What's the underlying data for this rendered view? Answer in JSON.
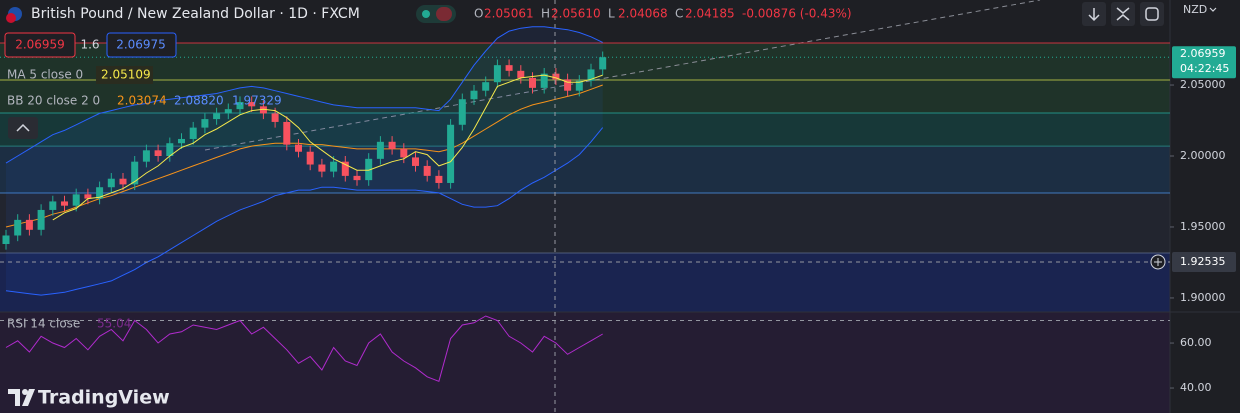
{
  "header": {
    "title": "British Pound / New Zealand Dollar · 1D · FXCM",
    "ohlc": [
      {
        "label": "O",
        "value": "2.05061"
      },
      {
        "label": "H",
        "value": "2.05610"
      },
      {
        "label": "L",
        "value": "2.04068"
      },
      {
        "label": "C",
        "value": "2.04185"
      }
    ],
    "change": "-0.00876 (-0.43%)"
  },
  "order_panel": {
    "sell": "2.06959",
    "spread": "1.6",
    "buy": "2.06975"
  },
  "indicators": {
    "ma": {
      "name": "MA 5 close 0",
      "value": "2.05109"
    },
    "bb": {
      "name": "BB 20 close 2 0",
      "values": [
        "2.03074",
        "2.08820",
        "1.97329"
      ]
    },
    "rsi": {
      "name": "RSI 14 close",
      "value": "55.04"
    }
  },
  "currency": "NZD",
  "countdown": "04:22:45",
  "logo": "TradingView",
  "chart_data": {
    "type": "candlestick",
    "up_color": "#22ab94",
    "down_color": "#f7525f",
    "ylim": [
      1.8901,
      2.1099
    ],
    "yticks": [
      {
        "value": 2.05,
        "label": "2.05000"
      },
      {
        "value": 2.0,
        "label": "2.00000"
      },
      {
        "value": 1.95,
        "label": "1.95000"
      },
      {
        "value": 1.9,
        "label": "1.90000"
      }
    ],
    "crosshair_price": 1.92535,
    "open": [
      1.938,
      1.944,
      1.955,
      1.948,
      1.962,
      1.968,
      1.965,
      1.973,
      1.97,
      1.978,
      1.984,
      1.98,
      1.996,
      2.004,
      2.0,
      2.009,
      2.012,
      2.02,
      2.026,
      2.03,
      2.033,
      2.038,
      2.035,
      2.03,
      2.024,
      2.008,
      2.003,
      1.994,
      1.989,
      1.996,
      1.986,
      1.983,
      1.998,
      2.01,
      2.005,
      1.999,
      1.993,
      1.986,
      1.981,
      2.022,
      2.04,
      2.046,
      2.052,
      2.064,
      2.06,
      2.055,
      2.048,
      2.058,
      2.054,
      2.046,
      2.053,
      2.061
    ],
    "high": [
      1.948,
      1.959,
      1.959,
      1.966,
      1.972,
      1.972,
      1.977,
      1.977,
      1.982,
      1.988,
      1.988,
      2.0,
      2.008,
      2.008,
      2.013,
      2.016,
      2.024,
      2.03,
      2.034,
      2.037,
      2.042,
      2.042,
      2.039,
      2.034,
      2.028,
      2.012,
      2.007,
      1.998,
      2.0,
      2.0,
      1.99,
      2.002,
      2.014,
      2.014,
      2.009,
      2.003,
      1.997,
      1.99,
      2.026,
      2.044,
      2.05,
      2.056,
      2.068,
      2.068,
      2.064,
      2.059,
      2.062,
      2.062,
      2.058,
      2.057,
      2.065,
      2.0736
    ],
    "low": [
      1.934,
      1.94,
      1.944,
      1.944,
      1.958,
      1.961,
      1.961,
      1.966,
      1.966,
      1.974,
      1.976,
      1.976,
      1.992,
      1.996,
      1.996,
      2.005,
      2.008,
      2.016,
      2.022,
      2.026,
      2.029,
      2.031,
      2.026,
      2.02,
      2.004,
      1.999,
      1.99,
      1.985,
      1.985,
      1.982,
      1.979,
      1.979,
      1.994,
      2.001,
      1.995,
      1.989,
      1.982,
      1.977,
      1.977,
      2.018,
      2.036,
      2.042,
      2.048,
      2.056,
      2.051,
      2.044,
      2.044,
      2.05,
      2.042,
      2.042,
      2.049,
      2.057
    ],
    "close": [
      1.944,
      1.955,
      1.948,
      1.962,
      1.968,
      1.965,
      1.973,
      1.97,
      1.978,
      1.984,
      1.98,
      1.996,
      2.004,
      2.0,
      2.009,
      2.012,
      2.02,
      2.026,
      2.03,
      2.033,
      2.038,
      2.035,
      2.03,
      2.024,
      2.008,
      2.003,
      1.994,
      1.989,
      1.996,
      1.986,
      1.983,
      1.998,
      2.01,
      2.005,
      1.999,
      1.993,
      1.986,
      1.981,
      2.022,
      2.04,
      2.046,
      2.052,
      2.064,
      2.06,
      2.055,
      2.048,
      2.058,
      2.054,
      2.046,
      2.053,
      2.061,
      2.06959
    ],
    "ma": {
      "color": "#f5e94b",
      "values": [
        null,
        null,
        null,
        null,
        1.955,
        1.96,
        1.963,
        1.97,
        1.971,
        1.974,
        1.977,
        1.982,
        1.988,
        1.993,
        2.0,
        2.006,
        2.009,
        2.015,
        2.019,
        2.024,
        2.029,
        2.032,
        2.033,
        2.032,
        2.027,
        2.02,
        2.01,
        2.004,
        1.998,
        1.994,
        1.99,
        1.99,
        1.993,
        1.996,
        1.998,
        2.003,
        2.001,
        1.993,
        1.996,
        2.006,
        2.019,
        2.034,
        2.049,
        2.052,
        2.055,
        2.056,
        2.057,
        2.055,
        2.052,
        2.052,
        2.054,
        2.057
      ]
    },
    "bb": {
      "basis_color": "#f7931a",
      "band_color": "#2962ff",
      "fill": "#2962ff",
      "basis": [
        1.95,
        1.952,
        1.954,
        1.956,
        1.959,
        1.961,
        1.964,
        1.967,
        1.97,
        1.972,
        1.975,
        1.978,
        1.981,
        1.984,
        1.987,
        1.99,
        1.993,
        1.996,
        1.999,
        2.002,
        2.005,
        2.007,
        2.008,
        2.009,
        2.009,
        2.009,
        2.008,
        2.008,
        2.007,
        2.006,
        2.005,
        2.005,
        2.005,
        2.005,
        2.005,
        2.005,
        2.004,
        2.003,
        2.005,
        2.009,
        2.014,
        2.019,
        2.024,
        2.029,
        2.033,
        2.036,
        2.038,
        2.04,
        2.042,
        2.044,
        2.047,
        2.05
      ],
      "upper": [
        1.995,
        2.0,
        2.005,
        2.01,
        2.015,
        2.018,
        2.022,
        2.026,
        2.03,
        2.032,
        2.034,
        2.036,
        2.037,
        2.039,
        2.04,
        2.041,
        2.042,
        2.043,
        2.044,
        2.046,
        2.048,
        2.049,
        2.048,
        2.046,
        2.044,
        2.042,
        2.04,
        2.038,
        2.036,
        2.035,
        2.034,
        2.034,
        2.034,
        2.034,
        2.034,
        2.034,
        2.033,
        2.032,
        2.04,
        2.052,
        2.064,
        2.074,
        2.083,
        2.088,
        2.09,
        2.091,
        2.091,
        2.09,
        2.089,
        2.087,
        2.084,
        2.08
      ],
      "lower": [
        1.905,
        1.904,
        1.903,
        1.902,
        1.903,
        1.904,
        1.906,
        1.908,
        1.91,
        1.912,
        1.916,
        1.92,
        1.925,
        1.929,
        1.934,
        1.939,
        1.944,
        1.949,
        1.954,
        1.958,
        1.962,
        1.965,
        1.968,
        1.972,
        1.974,
        1.976,
        1.976,
        1.978,
        1.978,
        1.977,
        1.976,
        1.976,
        1.976,
        1.976,
        1.976,
        1.976,
        1.975,
        1.974,
        1.97,
        1.966,
        1.964,
        1.964,
        1.965,
        1.97,
        1.976,
        1.981,
        1.985,
        1.99,
        1.995,
        2.001,
        2.01,
        2.02
      ]
    },
    "levels": [
      {
        "value": 2.0796,
        "color": "#f23645"
      },
      {
        "value": 2.0535,
        "color": "#c8cf4a"
      },
      {
        "value": 2.0303,
        "color": "#26a69a"
      },
      {
        "value": 2.007,
        "color": "#2a8f8a"
      },
      {
        "value": 1.9739,
        "color": "#4a8fe0"
      },
      {
        "value": 1.9317,
        "color": "#5c6a8a"
      }
    ],
    "zones": [
      {
        "from": 2.0796,
        "to": 2.0303,
        "color": "#1f3329"
      },
      {
        "from": 2.0303,
        "to": 2.007,
        "color": "#173838"
      },
      {
        "from": 2.007,
        "to": 1.9739,
        "color": "#1c2e43"
      },
      {
        "from": 1.9739,
        "to": 1.9317,
        "color": "#22252f"
      },
      {
        "from": 1.9317,
        "to": 1.8901,
        "color": "#1a2450"
      }
    ],
    "rsi": {
      "color": "#b02bcd",
      "ylim": [
        28.9,
        73.8
      ],
      "yticks": [
        {
          "value": 60,
          "label": "60.00"
        },
        {
          "value": 40,
          "label": "40.00"
        }
      ],
      "bands": [
        70
      ],
      "values": [
        58,
        61,
        56,
        63,
        60,
        58,
        62,
        57,
        63,
        66,
        61,
        70,
        66,
        60,
        64,
        65,
        68,
        67,
        66,
        68,
        70,
        64,
        67,
        62,
        57,
        51,
        54,
        48,
        58,
        52,
        50,
        60,
        64,
        56,
        52,
        49,
        45,
        43,
        62,
        68,
        69,
        72,
        70,
        63,
        60,
        56,
        63,
        60,
        55,
        58,
        61,
        64
      ]
    }
  }
}
